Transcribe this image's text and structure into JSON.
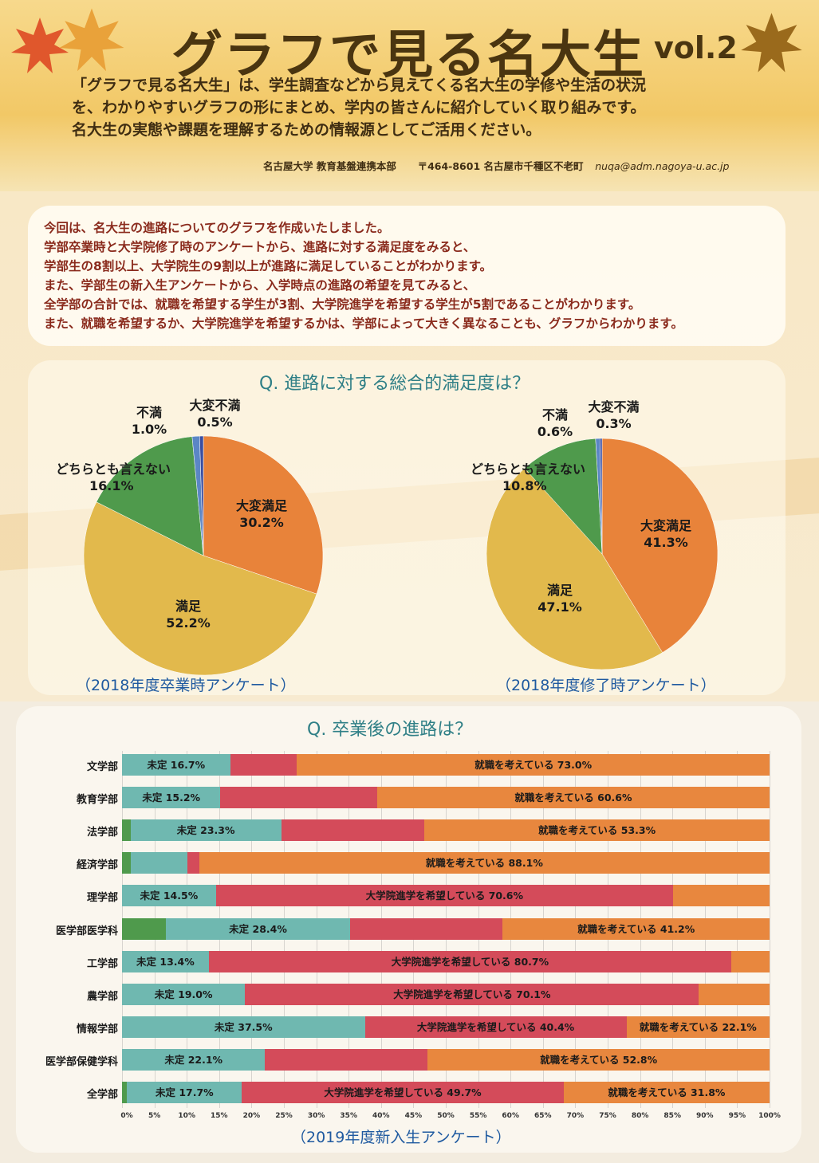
{
  "header": {
    "title": "グラフで見る名大生",
    "volume": "vol.2",
    "intro_lines": [
      "「グラフで見る名大生」は、学生調査などから見えてくる名大生の学修や生活の状況",
      "を、わかりやすいグラフの形にまとめ、学内の皆さんに紹介していく取り組みです。",
      "名大生の実態や課題を理解するための情報源としてご活用ください。"
    ],
    "org": "名古屋大学 教育基盤連携本部",
    "address": "〒464-8601 名古屋市千種区不老町",
    "email": "nuqa@adm.nagoya-u.ac.jp"
  },
  "summary": {
    "lines": [
      "今回は、名大生の進路についてのグラフを作成いたしました。",
      "学部卒業時と大学院修了時のアンケートから、進路に対する満足度をみると、",
      "学部生の8割以上、大学院生の9割以上が進路に満足していることがわかります。",
      "また、学部生の新入生アンケートから、入学時点の進路の希望を見てみると、",
      "全学部の合計では、就職を希望する学生が3割、大学院進学を希望する学生が5割であることがわかります。",
      "また、就職を希望するか、大学院進学を希望するかは、学部によって大きく異なることも、グラフからわかります。"
    ]
  },
  "colors": {
    "very_satisfied": "#e8833a",
    "satisfied": "#e2b94c",
    "neutral": "#4f9a4c",
    "dissatisfied": "#5b86c5",
    "very_dissatisfied": "#3a4ea0",
    "undecided": "#6fb8b0",
    "grad_school": "#d44b5a",
    "employment": "#e8873e",
    "other": "#4f9a4c"
  },
  "chart_data": [
    {
      "type": "pie",
      "title": "Q. 進路に対する総合的満足度は？",
      "caption": "（2018年度卒業時アンケート）",
      "slices": [
        {
          "label": "大変満足",
          "value": 30.2,
          "value_text": "30.2%",
          "color_key": "very_satisfied"
        },
        {
          "label": "満足",
          "value": 52.2,
          "value_text": "52.2%",
          "color_key": "satisfied"
        },
        {
          "label": "どちらとも言えない",
          "value": 16.1,
          "value_text": "16.1%",
          "color_key": "neutral"
        },
        {
          "label": "不満",
          "value": 1.0,
          "value_text": "1.0%",
          "color_key": "dissatisfied"
        },
        {
          "label": "大変不満",
          "value": 0.5,
          "value_text": "0.5%",
          "color_key": "very_dissatisfied"
        }
      ]
    },
    {
      "type": "pie",
      "caption": "（2018年度修了時アンケート）",
      "slices": [
        {
          "label": "大変満足",
          "value": 41.3,
          "value_text": "41.3%",
          "color_key": "very_satisfied"
        },
        {
          "label": "満足",
          "value": 47.1,
          "value_text": "47.1%",
          "color_key": "satisfied"
        },
        {
          "label": "どちらとも言えない",
          "value": 10.8,
          "value_text": "10.8%",
          "color_key": "neutral"
        },
        {
          "label": "不満",
          "value": 0.6,
          "value_text": "0.6%",
          "color_key": "dissatisfied"
        },
        {
          "label": "大変不満",
          "value": 0.3,
          "value_text": "0.3%",
          "color_key": "very_dissatisfied"
        }
      ]
    },
    {
      "type": "bar",
      "orientation": "horizontal",
      "stacked": true,
      "title": "Q. 卒業後の進路は？",
      "caption": "（2019年度新入生アンケート）",
      "xlim": [
        0,
        100
      ],
      "x_ticks": [
        "0%",
        "5%",
        "10%",
        "15%",
        "20%",
        "25%",
        "30%",
        "35%",
        "40%",
        "45%",
        "50%",
        "55%",
        "60%",
        "65%",
        "70%",
        "75%",
        "80%",
        "85%",
        "90%",
        "95%",
        "100%"
      ],
      "segment_order": [
        "other",
        "undecided",
        "grad_school",
        "employment"
      ],
      "rows": [
        {
          "dept": "文学部",
          "other": 0,
          "undecided": 16.7,
          "grad_school": 10.3,
          "employment": 73.0,
          "labels": {
            "undecided": "未定 16.7%",
            "employment": "就職を考えている 73.0%"
          }
        },
        {
          "dept": "教育学部",
          "other": 0,
          "undecided": 15.2,
          "grad_school": 24.2,
          "employment": 60.6,
          "labels": {
            "undecided": "未定 15.2%",
            "employment": "就職を考えている 60.6%"
          }
        },
        {
          "dept": "法学部",
          "other": 1.3,
          "undecided": 23.3,
          "grad_school": 22.1,
          "employment": 53.3,
          "labels": {
            "undecided": "未定 23.3%",
            "employment": "就職を考えている 53.3%"
          }
        },
        {
          "dept": "経済学部",
          "other": 1.3,
          "undecided": 8.8,
          "grad_school": 1.8,
          "employment": 88.1,
          "labels": {
            "employment": "就職を考えている 88.1%"
          }
        },
        {
          "dept": "理学部",
          "other": 0,
          "undecided": 14.5,
          "grad_school": 70.6,
          "employment": 14.9,
          "labels": {
            "undecided": "未定 14.5%",
            "grad_school": "大学院進学を希望している 70.6%"
          }
        },
        {
          "dept": "医学部医学科",
          "other": 6.8,
          "undecided": 28.4,
          "grad_school": 23.6,
          "employment": 41.2,
          "labels": {
            "undecided": "未定 28.4%",
            "employment": "就職を考えている 41.2%"
          }
        },
        {
          "dept": "工学部",
          "other": 0,
          "undecided": 13.4,
          "grad_school": 80.7,
          "employment": 5.9,
          "labels": {
            "undecided": "未定 13.4%",
            "grad_school": "大学院進学を希望している 80.7%"
          }
        },
        {
          "dept": "農学部",
          "other": 0,
          "undecided": 19.0,
          "grad_school": 70.1,
          "employment": 10.9,
          "labels": {
            "undecided": "未定 19.0%",
            "grad_school": "大学院進学を希望している 70.1%"
          }
        },
        {
          "dept": "情報学部",
          "other": 0,
          "undecided": 37.5,
          "grad_school": 40.4,
          "employment": 22.1,
          "labels": {
            "undecided": "未定 37.5%",
            "grad_school": "大学院進学を希望している 40.4%",
            "employment": "就職を考えている 22.1%"
          }
        },
        {
          "dept": "医学部保健学科",
          "other": 0,
          "undecided": 22.1,
          "grad_school": 25.1,
          "employment": 52.8,
          "labels": {
            "undecided": "未定 22.1%",
            "employment": "就職を考えている 52.8%"
          }
        },
        {
          "dept": "全学部",
          "other": 0.8,
          "undecided": 17.7,
          "grad_school": 49.7,
          "employment": 31.8,
          "labels": {
            "undecided": "未定 17.7%",
            "grad_school": "大学院進学を希望している 49.7%",
            "employment": "就職を考えている 31.8%"
          }
        }
      ]
    }
  ]
}
